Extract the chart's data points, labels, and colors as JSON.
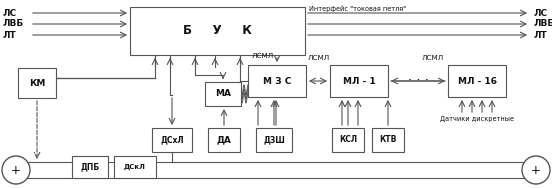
{
  "bg": "#ffffff",
  "lc": "#555555",
  "tc": "#111111",
  "fs": 6.5,
  "fs_sm": 5.2,
  "buk_label": "Б     У     К",
  "mzs_label": "М З С",
  "ml1_label": "МЛ - 1",
  "ml16_label": "МЛ - 16",
  "km_label": "КМ",
  "ma_label": "МА",
  "dshl_label": "ДСхЛ",
  "da_label": "ДА",
  "dzsh_label": "ДЗШ",
  "ksl_label": "КСЛ",
  "ktv_label": "КТВ",
  "dpb_label": "ДПБ",
  "dskl_label": "ДСкЛ",
  "left_labels": [
    "ЛС",
    "ЛВБ",
    "ЛТ"
  ],
  "right_labels": [
    "ЛС",
    "ЛВБ",
    "ЛТ"
  ],
  "iface_label": "Интерфейс \"токовая петля\"",
  "lsml_label": "ЛСМЛ",
  "datchiki_label": "Датчики дискретные"
}
